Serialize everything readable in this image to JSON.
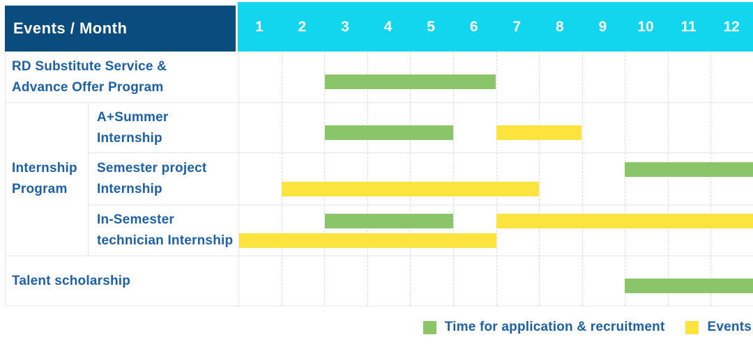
{
  "table": {
    "header": {
      "title": "Events / Month",
      "months": [
        "1",
        "2",
        "3",
        "4",
        "5",
        "6",
        "7",
        "8",
        "9",
        "10",
        "11",
        "12"
      ]
    },
    "group_label": "Internship\nProgram",
    "rows": [
      {
        "id": "rd-substitute",
        "label": "RD Substitute Service &\nAdvance Offer Program",
        "bars": [
          {
            "series": "application",
            "start": 3,
            "end": 6,
            "line": "single"
          }
        ]
      },
      {
        "id": "a-summer-internship",
        "group": "Internship Program",
        "label": "A+Summer\nInternship",
        "bars": [
          {
            "series": "application",
            "start": 3,
            "end": 5,
            "line": "single"
          },
          {
            "series": "events",
            "start": 7,
            "end": 8,
            "line": "single"
          }
        ]
      },
      {
        "id": "semester-project-internship",
        "group": "Internship Program",
        "label": "Semester project\nInternship",
        "bars": [
          {
            "series": "application",
            "start": 10,
            "end": 12,
            "line": "top"
          },
          {
            "series": "events",
            "start": 2,
            "end": 7,
            "line": "bottom"
          }
        ]
      },
      {
        "id": "in-semester-technician-internship",
        "group": "Internship Program",
        "label": "In-Semester\ntechnician Internship",
        "bars": [
          {
            "series": "application",
            "start": 3,
            "end": 5,
            "line": "top"
          },
          {
            "series": "events",
            "start": 7,
            "end": 12,
            "line": "top"
          },
          {
            "series": "events",
            "start": 1,
            "end": 6,
            "line": "bottom"
          }
        ]
      },
      {
        "id": "talent-scholarship",
        "label": "Talent scholarship",
        "bars": [
          {
            "series": "application",
            "start": 10,
            "end": 12,
            "line": "single"
          }
        ]
      }
    ]
  },
  "legend": {
    "application": "Time for application & recruitment",
    "events": "Events"
  },
  "colors": {
    "header_blue": "#0b4c7e",
    "header_cyan": "#12d6ee",
    "label_blue": "#1c61a6",
    "application_green": "#8ac569",
    "events_yellow": "#fde33e",
    "grid_line": "#e6e6e6"
  },
  "chart_data": {
    "type": "table",
    "subtype": "gantt",
    "title": "Events / Month",
    "x_axis": {
      "label": "Month",
      "ticks": [
        1,
        2,
        3,
        4,
        5,
        6,
        7,
        8,
        9,
        10,
        11,
        12
      ],
      "range": [
        1,
        12
      ]
    },
    "legend": [
      {
        "name": "Time for application & recruitment",
        "color": "#8ac569"
      },
      {
        "name": "Events",
        "color": "#fde33e"
      }
    ],
    "legend_position": "bottom-right",
    "grid": "dashed-vertical-month-lines",
    "rows": [
      {
        "name": "RD Substitute Service & Advance Offer Program",
        "spans": [
          {
            "series": "Time for application & recruitment",
            "start_month": 3,
            "end_month": 6
          }
        ]
      },
      {
        "name": "Internship Program — A+Summer Internship",
        "spans": [
          {
            "series": "Time for application & recruitment",
            "start_month": 3,
            "end_month": 5
          },
          {
            "series": "Events",
            "start_month": 7,
            "end_month": 8
          }
        ]
      },
      {
        "name": "Internship Program — Semester project Internship",
        "spans": [
          {
            "series": "Time for application & recruitment",
            "start_month": 10,
            "end_month": 12
          },
          {
            "series": "Events",
            "start_month": 2,
            "end_month": 7
          }
        ]
      },
      {
        "name": "Internship Program — In-Semester technician Internship",
        "spans": [
          {
            "series": "Time for application & recruitment",
            "start_month": 3,
            "end_month": 5
          },
          {
            "series": "Events",
            "start_month": 7,
            "end_month": 12
          },
          {
            "series": "Events",
            "start_month": 1,
            "end_month": 6
          }
        ]
      },
      {
        "name": "Talent scholarship",
        "spans": [
          {
            "series": "Time for application & recruitment",
            "start_month": 10,
            "end_month": 12
          }
        ]
      }
    ]
  }
}
